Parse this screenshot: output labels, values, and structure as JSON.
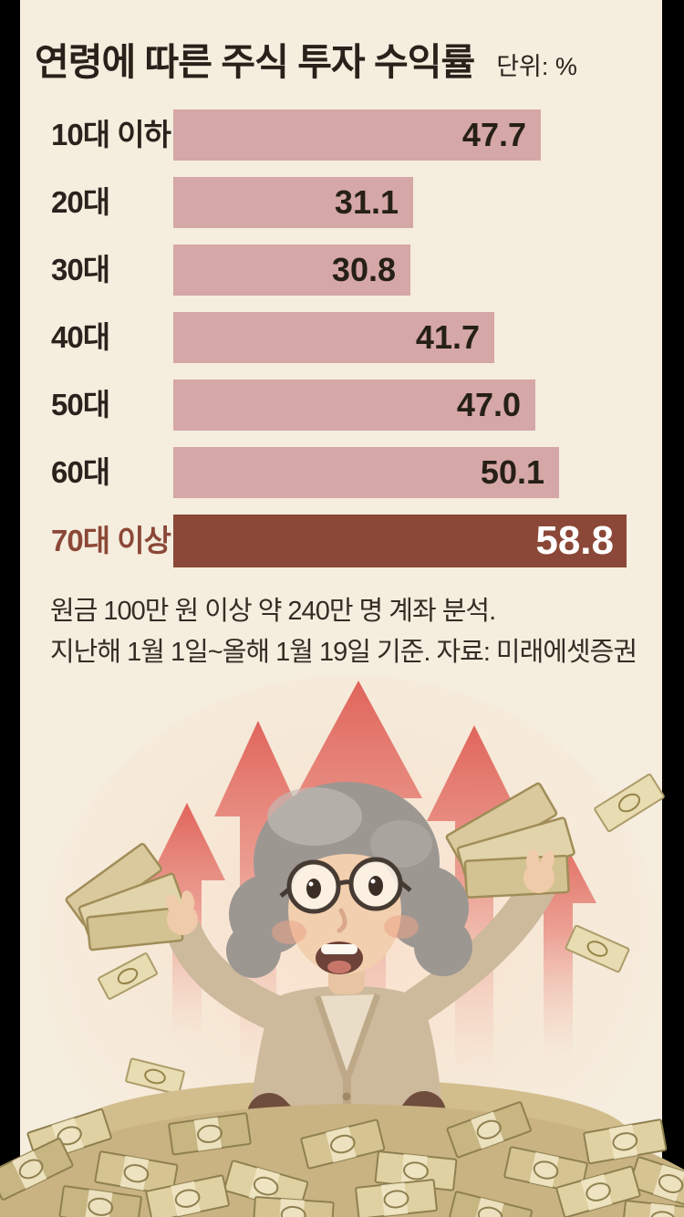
{
  "frame": {
    "side_letterbox_color": "#000000",
    "background_color": "#f5edde"
  },
  "header": {
    "title": "연령에 따른 주식 투자 수익률",
    "unit_label": "단위: %"
  },
  "chart_data": {
    "type": "bar",
    "orientation": "horizontal",
    "title": "연령에 따른 주식 투자 수익률",
    "unit": "%",
    "categories": [
      "10대 이하",
      "20대",
      "30대",
      "40대",
      "50대",
      "60대",
      "70대 이상"
    ],
    "values": [
      47.7,
      31.1,
      30.8,
      41.7,
      47.0,
      50.1,
      58.8
    ],
    "value_labels": [
      "47.7",
      "31.1",
      "30.8",
      "41.7",
      "47.0",
      "50.1",
      "58.8"
    ],
    "highlight_index": 6,
    "bar_color": "#d5a7a7",
    "highlight_color": "#8b4737",
    "value_label_position": "inside-right",
    "xlim": [
      0,
      62
    ],
    "grid": false,
    "legend": false
  },
  "footnotes": [
    "원금 100만 원 이상 약 240만 명 계좌 분석.",
    "지난해 1월 1일~올해 1월 19일 기준. 자료: 미래에셋증권"
  ],
  "illustration": {
    "description": "웃고 있는 할머니가 돈다발 더미 위에 앉아 양손에 5만 원권 뭉치를 들고 있고, 뒤로 붉은 상승 화살표들이 솟아 있다",
    "arrow_color": "#df5f56",
    "money_color": "#d9c99c",
    "cardigan_color": "#cdb99c",
    "pants_color": "#6f4d3d"
  }
}
